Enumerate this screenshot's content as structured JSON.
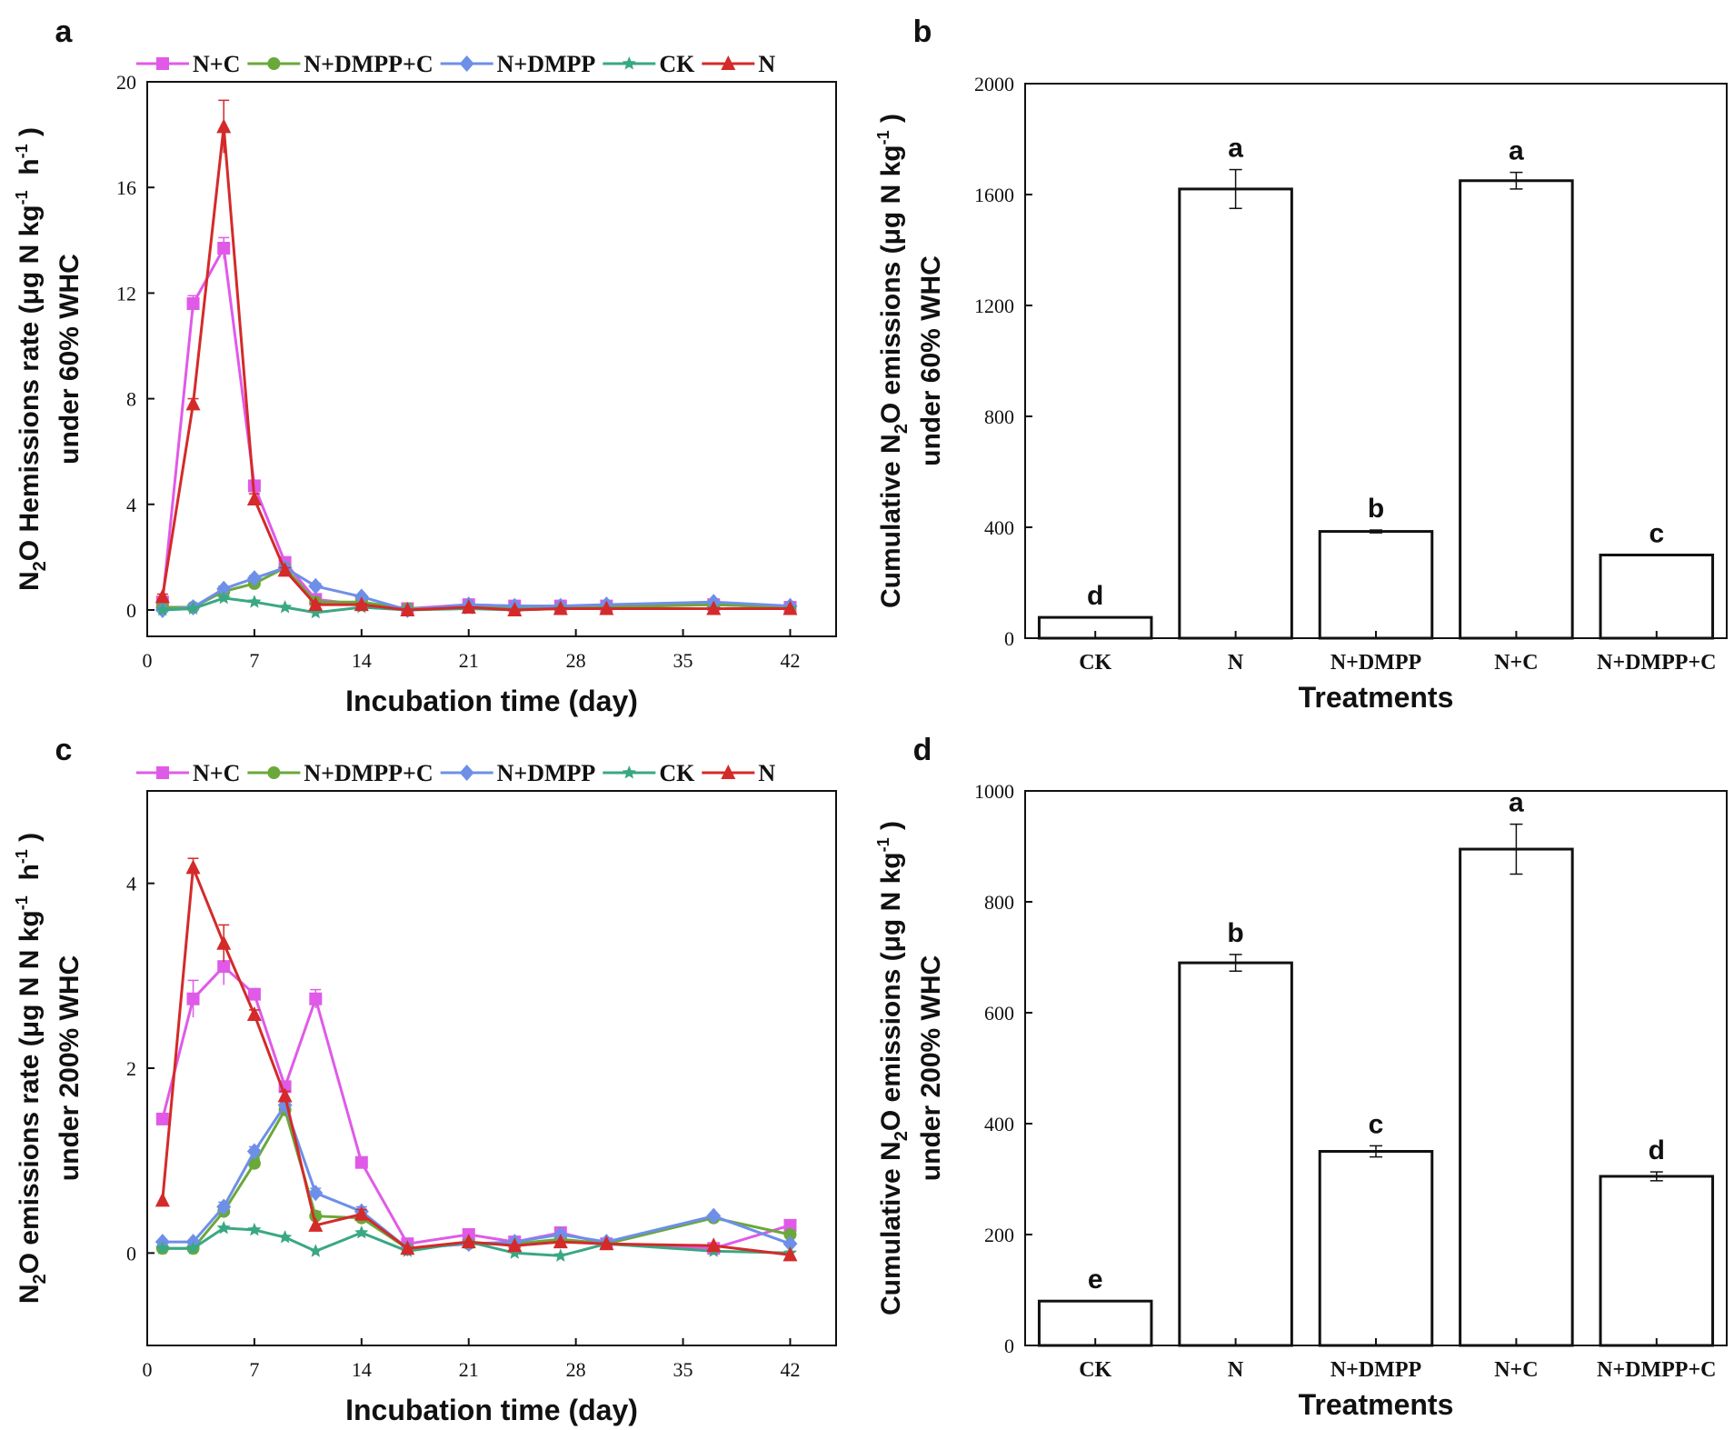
{
  "chart_data": [
    {
      "panel": "a",
      "type": "line",
      "xlabel": "Incubation time (day)",
      "ylabel_main": "N2O Hemissions rate  (μg N kg-1 h-1)",
      "ylabel_sub": "under 60% WHC",
      "xlim": [
        0,
        45
      ],
      "ylim": [
        -1,
        20
      ],
      "xticks": [
        0,
        7,
        14,
        21,
        28,
        35,
        42
      ],
      "yticks": [
        0,
        4,
        8,
        12,
        16,
        20
      ],
      "legend": "top",
      "x": [
        1,
        3,
        5,
        7,
        9,
        11,
        14,
        17,
        21,
        24,
        27,
        30,
        37,
        42
      ],
      "series": [
        {
          "name": "N+C",
          "color": "#e05ae8",
          "marker": "square",
          "values": [
            0.3,
            11.6,
            13.7,
            4.7,
            1.8,
            0.4,
            0.2,
            0.05,
            0.2,
            0.15,
            0.15,
            0.15,
            0.2,
            0.1
          ],
          "errors": [
            0.1,
            0.3,
            0.4,
            0.2,
            0.2,
            0.1,
            0.05,
            0.05,
            0.05,
            0.05,
            0.05,
            0.05,
            0.05,
            0.05
          ]
        },
        {
          "name": "N+DMPP+C",
          "color": "#6aa83a",
          "marker": "circle",
          "values": [
            0.1,
            0.1,
            0.7,
            1.0,
            1.6,
            0.3,
            0.3,
            0.05,
            0.1,
            0.1,
            0.1,
            0.1,
            0.2,
            0.1
          ],
          "errors": [
            0.05,
            0.05,
            0.1,
            0.1,
            0.1,
            0.05,
            0.05,
            0.05,
            0.05,
            0.05,
            0.05,
            0.05,
            0.05,
            0.05
          ]
        },
        {
          "name": "N+DMPP",
          "color": "#6e8fe8",
          "marker": "diamond",
          "values": [
            0.0,
            0.1,
            0.8,
            1.2,
            1.6,
            0.9,
            0.5,
            0.0,
            0.2,
            0.15,
            0.15,
            0.2,
            0.3,
            0.15
          ],
          "errors": [
            0.05,
            0.05,
            0.1,
            0.1,
            0.1,
            0.1,
            0.05,
            0.05,
            0.05,
            0.05,
            0.05,
            0.05,
            0.05,
            0.05
          ]
        },
        {
          "name": "CK",
          "color": "#3aa882",
          "marker": "star",
          "values": [
            0.0,
            0.05,
            0.45,
            0.3,
            0.1,
            -0.1,
            0.1,
            0.0,
            0.05,
            0.0,
            0.05,
            0.05,
            0.05,
            0.05
          ],
          "errors": [
            0.02,
            0.02,
            0.05,
            0.05,
            0.05,
            0.05,
            0.05,
            0.02,
            0.02,
            0.02,
            0.02,
            0.02,
            0.02,
            0.02
          ]
        },
        {
          "name": "N",
          "color": "#d42a2a",
          "marker": "triangle",
          "values": [
            0.5,
            7.8,
            18.3,
            4.2,
            1.5,
            0.2,
            0.2,
            0.0,
            0.1,
            0.0,
            0.05,
            0.05,
            0.05,
            0.05
          ],
          "errors": [
            0.1,
            0.2,
            1.0,
            0.2,
            0.1,
            0.05,
            0.05,
            0.02,
            0.02,
            0.02,
            0.02,
            0.02,
            0.02,
            0.02
          ]
        }
      ]
    },
    {
      "panel": "b",
      "type": "bar",
      "xlabel": "Treatments",
      "ylabel_main": "Cumulative N2O emissions  (μg N kg-1)",
      "ylabel_sub": "under 60% WHC",
      "ylim": [
        0,
        2000
      ],
      "yticks": [
        0,
        400,
        800,
        1200,
        1600,
        2000
      ],
      "categories": [
        "CK",
        "N",
        "N+DMPP",
        "N+C",
        "N+DMPP+C"
      ],
      "values": [
        75,
        1620,
        385,
        1650,
        300
      ],
      "errors": [
        0,
        70,
        5,
        30,
        0
      ],
      "letters": [
        "d",
        "a",
        "b",
        "a",
        "c"
      ]
    },
    {
      "panel": "c",
      "type": "line",
      "xlabel": "Incubation time (day)",
      "ylabel_main": "N2O emissions rate  (μg N N kg-1 h-1)",
      "ylabel_sub": "under 200% WHC",
      "xlim": [
        0,
        45
      ],
      "ylim": [
        -1,
        5
      ],
      "xticks": [
        0,
        7,
        14,
        21,
        28,
        35,
        42
      ],
      "yticks": [
        0,
        2,
        4
      ],
      "legend": "top",
      "x": [
        1,
        3,
        5,
        7,
        9,
        11,
        14,
        17,
        21,
        24,
        27,
        30,
        37,
        42
      ],
      "series": [
        {
          "name": "N+C",
          "color": "#e05ae8",
          "marker": "square",
          "values": [
            1.45,
            2.75,
            3.1,
            2.8,
            1.8,
            2.75,
            0.98,
            0.1,
            0.2,
            0.12,
            0.22,
            0.1,
            0.05,
            0.3
          ],
          "errors": [
            0.05,
            0.2,
            0.2,
            0.05,
            0.05,
            0.1,
            0.05,
            0.03,
            0.03,
            0.03,
            0.05,
            0.03,
            0.03,
            0.03
          ]
        },
        {
          "name": "N+DMPP+C",
          "color": "#6aa83a",
          "marker": "circle",
          "values": [
            0.05,
            0.05,
            0.45,
            0.97,
            1.55,
            0.4,
            0.38,
            0.05,
            0.1,
            0.1,
            0.15,
            0.1,
            0.38,
            0.2
          ],
          "errors": [
            0.02,
            0.02,
            0.05,
            0.05,
            0.05,
            0.05,
            0.05,
            0.02,
            0.02,
            0.02,
            0.02,
            0.02,
            0.03,
            0.03
          ]
        },
        {
          "name": "N+DMPP",
          "color": "#6e8fe8",
          "marker": "diamond",
          "values": [
            0.12,
            0.12,
            0.5,
            1.1,
            1.6,
            0.65,
            0.45,
            0.05,
            0.1,
            0.12,
            0.2,
            0.12,
            0.4,
            0.1
          ],
          "errors": [
            0.02,
            0.02,
            0.05,
            0.05,
            0.05,
            0.05,
            0.05,
            0.02,
            0.02,
            0.02,
            0.02,
            0.02,
            0.03,
            0.03
          ]
        },
        {
          "name": "CK",
          "color": "#3aa882",
          "marker": "star",
          "values": [
            0.05,
            0.05,
            0.27,
            0.25,
            0.17,
            0.02,
            0.22,
            0.02,
            0.12,
            0.0,
            -0.03,
            0.1,
            0.02,
            0.0
          ],
          "errors": [
            0.02,
            0.02,
            0.03,
            0.03,
            0.03,
            0.02,
            0.03,
            0.02,
            0.02,
            0.02,
            0.02,
            0.02,
            0.02,
            0.02
          ]
        },
        {
          "name": "N",
          "color": "#d42a2a",
          "marker": "triangle",
          "values": [
            0.57,
            4.17,
            3.35,
            2.58,
            1.7,
            0.3,
            0.42,
            0.05,
            0.12,
            0.08,
            0.12,
            0.1,
            0.08,
            -0.02
          ],
          "errors": [
            0.03,
            0.1,
            0.2,
            0.05,
            0.05,
            0.03,
            0.05,
            0.02,
            0.02,
            0.02,
            0.02,
            0.02,
            0.02,
            0.02
          ]
        }
      ]
    },
    {
      "panel": "d",
      "type": "bar",
      "xlabel": "Treatments",
      "ylabel_main": "Cumulative N2O emissions (μg N kg-1)",
      "ylabel_sub": "under 200% WHC",
      "ylim": [
        0,
        1000
      ],
      "yticks": [
        0,
        200,
        400,
        600,
        800,
        1000
      ],
      "categories": [
        "CK",
        "N",
        "N+DMPP",
        "N+C",
        "N+DMPP+C"
      ],
      "values": [
        80,
        690,
        350,
        895,
        305
      ],
      "errors": [
        0,
        15,
        10,
        45,
        8
      ],
      "letters": [
        "e",
        "b",
        "c",
        "a",
        "d"
      ]
    }
  ]
}
